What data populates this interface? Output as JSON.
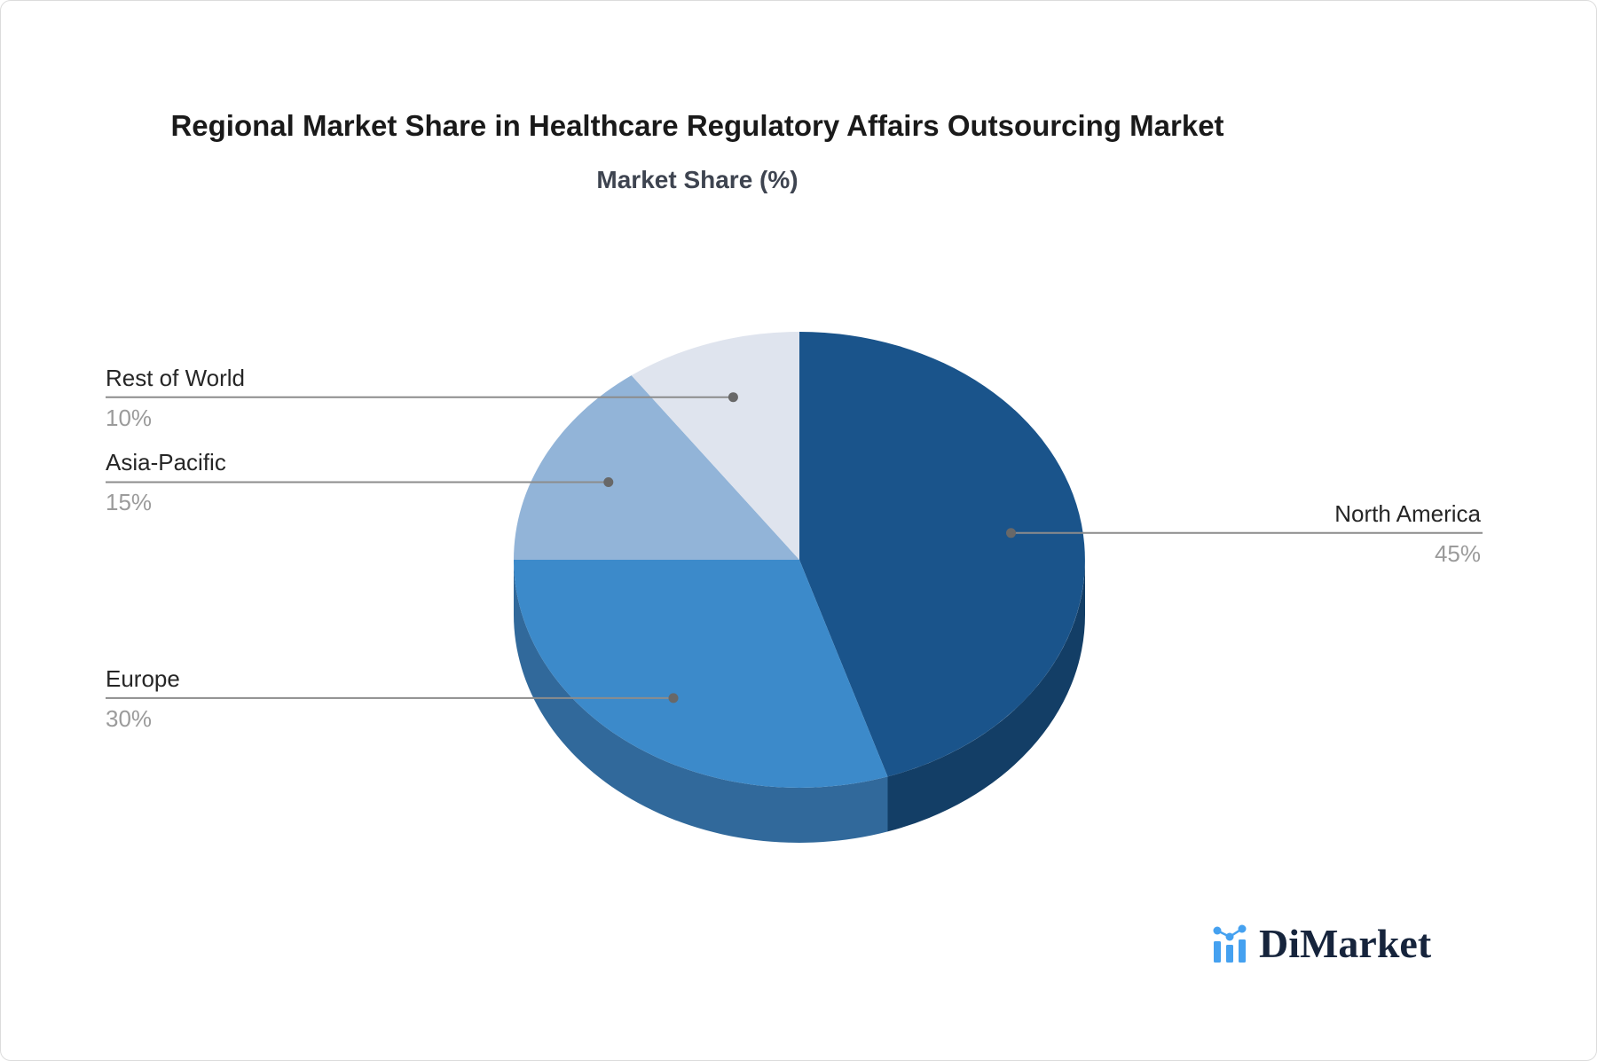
{
  "title": "Regional Market Share in Healthcare Regulatory Affairs Outsourcing Market",
  "subtitle": "Market Share (%)",
  "brand": {
    "name": "DiMarket",
    "icon": "bar-line-chart-logo",
    "text_color": "#16243c",
    "accent_blue": "#45a1f0"
  },
  "chart_data": {
    "type": "pie",
    "three_d": true,
    "unit": "%",
    "start_angle_deg": 0,
    "direction": "clockwise",
    "title": "Regional Market Share in Healthcare Regulatory Affairs Outsourcing Market",
    "subtitle": "Market Share (%)",
    "legend_position": "none",
    "slices": [
      {
        "label": "North America",
        "value": 45,
        "pct_text": "45%",
        "color": "#1A548B",
        "side_color": "#133E66",
        "label_side": "right"
      },
      {
        "label": "Europe",
        "value": 30,
        "pct_text": "30%",
        "color": "#3C8ACA",
        "side_color": "#31699B",
        "label_side": "left"
      },
      {
        "label": "Asia-Pacific",
        "value": 15,
        "pct_text": "15%",
        "color": "#92B4D8",
        "side_color": "#6E93BC",
        "label_side": "left"
      },
      {
        "label": "Rest of World",
        "value": 10,
        "pct_text": "10%",
        "color": "#DFE4EE",
        "side_color": "#B9C3D6",
        "label_side": "left"
      }
    ],
    "leader_line_color": "#8c8c8c",
    "leader_dot_color": "#686868",
    "label_text_color": "#262626",
    "value_text_color": "#9b9b9b"
  }
}
